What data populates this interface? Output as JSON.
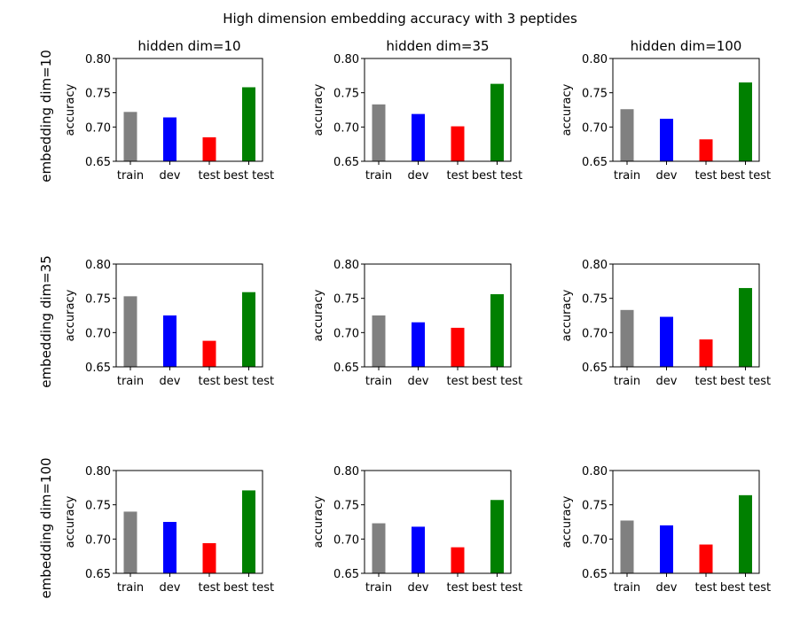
{
  "figure": {
    "title": "High dimension embedding accuracy with 3 peptides"
  },
  "colors": {
    "bars": [
      "#808080",
      "#0000ff",
      "#ff0000",
      "#008000"
    ],
    "axis": "#000000"
  },
  "chart_data": [
    {
      "type": "bar",
      "row_label": "embedding dim=10",
      "title": "hidden dim=10",
      "ylabel": "accuracy",
      "categories": [
        "train",
        "dev",
        "test",
        "best test"
      ],
      "values": [
        0.722,
        0.714,
        0.685,
        0.758
      ],
      "ylim": [
        0.65,
        0.8
      ],
      "yticks": [
        "0.65",
        "0.70",
        "0.75",
        "0.80"
      ]
    },
    {
      "type": "bar",
      "row_label": "embedding dim=10",
      "title": "hidden dim=35",
      "ylabel": "accuracy",
      "categories": [
        "train",
        "dev",
        "test",
        "best test"
      ],
      "values": [
        0.733,
        0.719,
        0.701,
        0.763
      ],
      "ylim": [
        0.65,
        0.8
      ],
      "yticks": [
        "0.65",
        "0.70",
        "0.75",
        "0.80"
      ]
    },
    {
      "type": "bar",
      "row_label": "embedding dim=10",
      "title": "hidden dim=100",
      "ylabel": "accuracy",
      "categories": [
        "train",
        "dev",
        "test",
        "best test"
      ],
      "values": [
        0.726,
        0.712,
        0.682,
        0.765
      ],
      "ylim": [
        0.65,
        0.8
      ],
      "yticks": [
        "0.65",
        "0.70",
        "0.75",
        "0.80"
      ]
    },
    {
      "type": "bar",
      "row_label": "embedding dim=35",
      "title": "",
      "ylabel": "accuracy",
      "categories": [
        "train",
        "dev",
        "test",
        "best test"
      ],
      "values": [
        0.753,
        0.725,
        0.688,
        0.759
      ],
      "ylim": [
        0.65,
        0.8
      ],
      "yticks": [
        "0.65",
        "0.70",
        "0.75",
        "0.80"
      ]
    },
    {
      "type": "bar",
      "row_label": "embedding dim=35",
      "title": "",
      "ylabel": "accuracy",
      "categories": [
        "train",
        "dev",
        "test",
        "best test"
      ],
      "values": [
        0.725,
        0.715,
        0.707,
        0.756
      ],
      "ylim": [
        0.65,
        0.8
      ],
      "yticks": [
        "0.65",
        "0.70",
        "0.75",
        "0.80"
      ]
    },
    {
      "type": "bar",
      "row_label": "embedding dim=35",
      "title": "",
      "ylabel": "accuracy",
      "categories": [
        "train",
        "dev",
        "test",
        "best test"
      ],
      "values": [
        0.733,
        0.723,
        0.69,
        0.765
      ],
      "ylim": [
        0.65,
        0.8
      ],
      "yticks": [
        "0.65",
        "0.70",
        "0.75",
        "0.80"
      ]
    },
    {
      "type": "bar",
      "row_label": "embedding dim=100",
      "title": "",
      "ylabel": "accuracy",
      "categories": [
        "train",
        "dev",
        "test",
        "best test"
      ],
      "values": [
        0.74,
        0.725,
        0.694,
        0.771
      ],
      "ylim": [
        0.65,
        0.8
      ],
      "yticks": [
        "0.65",
        "0.70",
        "0.75",
        "0.80"
      ]
    },
    {
      "type": "bar",
      "row_label": "embedding dim=100",
      "title": "",
      "ylabel": "accuracy",
      "categories": [
        "train",
        "dev",
        "test",
        "best test"
      ],
      "values": [
        0.723,
        0.718,
        0.688,
        0.757
      ],
      "ylim": [
        0.65,
        0.8
      ],
      "yticks": [
        "0.65",
        "0.70",
        "0.75",
        "0.80"
      ]
    },
    {
      "type": "bar",
      "row_label": "embedding dim=100",
      "title": "",
      "ylabel": "accuracy",
      "categories": [
        "train",
        "dev",
        "test",
        "best test"
      ],
      "values": [
        0.727,
        0.72,
        0.692,
        0.764
      ],
      "ylim": [
        0.65,
        0.8
      ],
      "yticks": [
        "0.65",
        "0.70",
        "0.75",
        "0.80"
      ]
    }
  ]
}
